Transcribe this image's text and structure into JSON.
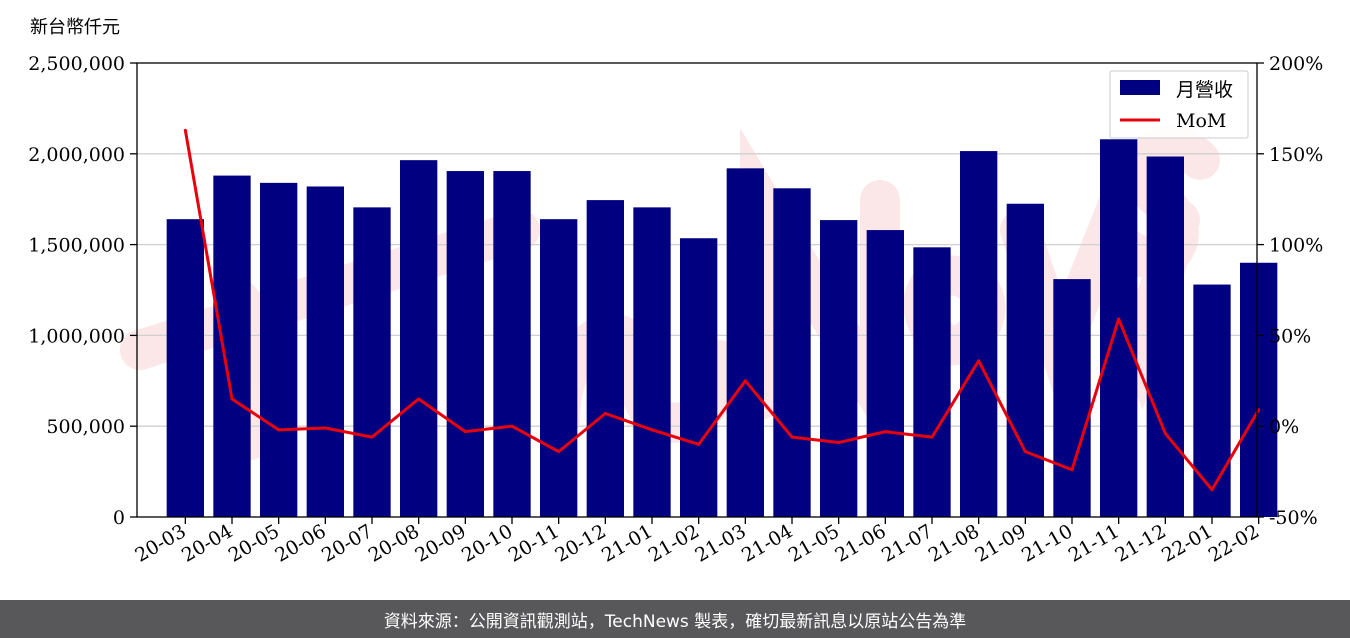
{
  "chart_data": {
    "type": "bar",
    "y_unit_label": "新台幣仟元",
    "categories": [
      "20-03",
      "20-04",
      "20-05",
      "20-06",
      "20-07",
      "20-08",
      "20-09",
      "20-10",
      "20-11",
      "20-12",
      "21-01",
      "21-02",
      "21-03",
      "21-04",
      "21-05",
      "21-06",
      "21-07",
      "21-08",
      "21-09",
      "21-10",
      "21-11",
      "21-12",
      "22-01",
      "22-02"
    ],
    "series": [
      {
        "name": "月營收",
        "type": "bar",
        "axis": "left",
        "color": "#000080",
        "values": [
          1640000,
          1880000,
          1840000,
          1820000,
          1705000,
          1965000,
          1905000,
          1905000,
          1640000,
          1745000,
          1705000,
          1535000,
          1920000,
          1810000,
          1635000,
          1580000,
          1485000,
          2015000,
          1725000,
          1310000,
          2080000,
          1985000,
          1280000,
          1400000
        ]
      },
      {
        "name": "MoM",
        "type": "line",
        "axis": "right",
        "color": "#e8000b",
        "values": [
          163,
          15,
          -2,
          -1,
          -6,
          15,
          -3,
          0,
          -14,
          7,
          -2,
          -10,
          25,
          -6,
          -9,
          -3,
          -6,
          36,
          -14,
          -24,
          59,
          -4,
          -35,
          9
        ]
      }
    ],
    "y_left": {
      "min": 0,
      "max": 2500000,
      "ticks": [
        0,
        500000,
        1000000,
        1500000,
        2000000,
        2500000
      ],
      "tick_labels": [
        "0",
        "500,000",
        "1,000,000",
        "1,500,000",
        "2,000,000",
        "2,500,000"
      ]
    },
    "y_right": {
      "min": -50,
      "max": 200,
      "ticks": [
        -50,
        0,
        50,
        100,
        150,
        200
      ],
      "tick_labels": [
        "-50%",
        "0%",
        "50%",
        "100%",
        "150%",
        "200%"
      ]
    },
    "grid": "horizontal",
    "legend_position": "top-right"
  },
  "footer": {
    "text": "資料來源：公開資訊觀測站，TechNews 製表，確切最新訊息以原站公告為準"
  }
}
